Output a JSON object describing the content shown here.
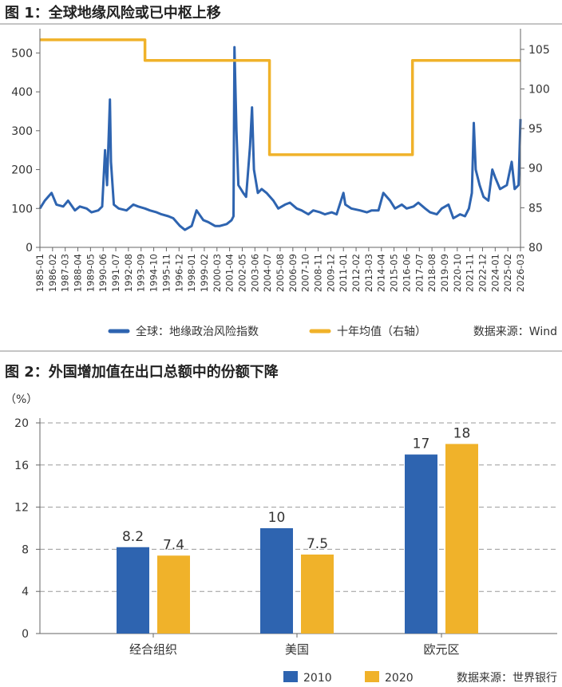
{
  "chart_data": [
    {
      "type": "line",
      "title": "图 1：全球地缘风险或已中枢上移",
      "source": "数据来源：Wind",
      "left_axis": {
        "ylim": [
          0,
          550
        ],
        "ticks": [
          0,
          100,
          200,
          300,
          400,
          500
        ]
      },
      "right_axis": {
        "ylim": [
          80,
          107
        ],
        "ticks": [
          80,
          85,
          90,
          95,
          100,
          105
        ]
      },
      "x_ticks": [
        "1985-01",
        "1986-02",
        "1987-03",
        "1988-04",
        "1989-05",
        "1990-06",
        "1991-07",
        "1992-08",
        "1993-09",
        "1994-10",
        "1995-11",
        "1996-12",
        "1998-01",
        "1999-02",
        "2000-03",
        "2001-04",
        "2002-05",
        "2003-06",
        "2004-07",
        "2005-08",
        "2006-09",
        "2007-10",
        "2008-11",
        "2009-12",
        "2011-01",
        "2012-02",
        "2013-03",
        "2014-04",
        "2015-05",
        "2016-06",
        "2017-07",
        "2018-08",
        "2019-09",
        "2020-10",
        "2021-11",
        "2022-12",
        "2024-01",
        "2025-02",
        "2026-03"
      ],
      "series": [
        {
          "name": "全球：地缘政治风险指数",
          "axis": "left",
          "color": "#2E64B0",
          "points": [
            [
              "1985-01",
              100
            ],
            [
              "1985-06",
              120
            ],
            [
              "1986-01",
              140
            ],
            [
              "1986-06",
              110
            ],
            [
              "1987-01",
              105
            ],
            [
              "1987-06",
              120
            ],
            [
              "1988-01",
              95
            ],
            [
              "1988-06",
              105
            ],
            [
              "1989-01",
              100
            ],
            [
              "1989-06",
              90
            ],
            [
              "1990-01",
              95
            ],
            [
              "1990-05",
              105
            ],
            [
              "1990-08",
              250
            ],
            [
              "1990-10",
              160
            ],
            [
              "1991-01",
              380
            ],
            [
              "1991-02",
              220
            ],
            [
              "1991-05",
              110
            ],
            [
              "1991-10",
              100
            ],
            [
              "1992-06",
              95
            ],
            [
              "1993-01",
              110
            ],
            [
              "1993-06",
              105
            ],
            [
              "1994-01",
              100
            ],
            [
              "1994-06",
              95
            ],
            [
              "1995-01",
              90
            ],
            [
              "1995-06",
              85
            ],
            [
              "1996-01",
              80
            ],
            [
              "1996-06",
              75
            ],
            [
              "1997-01",
              55
            ],
            [
              "1997-06",
              45
            ],
            [
              "1998-01",
              55
            ],
            [
              "1998-06",
              95
            ],
            [
              "1999-01",
              70
            ],
            [
              "1999-06",
              65
            ],
            [
              "2000-01",
              55
            ],
            [
              "2000-06",
              55
            ],
            [
              "2001-01",
              60
            ],
            [
              "2001-06",
              70
            ],
            [
              "2001-08",
              80
            ],
            [
              "2001-09",
              515
            ],
            [
              "2001-11",
              300
            ],
            [
              "2002-01",
              160
            ],
            [
              "2002-06",
              140
            ],
            [
              "2002-09",
              130
            ],
            [
              "2003-01",
              260
            ],
            [
              "2003-03",
              360
            ],
            [
              "2003-05",
              200
            ],
            [
              "2003-09",
              140
            ],
            [
              "2004-01",
              150
            ],
            [
              "2004-06",
              140
            ],
            [
              "2005-01",
              120
            ],
            [
              "2005-06",
              100
            ],
            [
              "2006-01",
              110
            ],
            [
              "2006-06",
              115
            ],
            [
              "2007-01",
              100
            ],
            [
              "2007-06",
              95
            ],
            [
              "2008-01",
              85
            ],
            [
              "2008-06",
              95
            ],
            [
              "2009-01",
              90
            ],
            [
              "2009-06",
              85
            ],
            [
              "2010-01",
              90
            ],
            [
              "2010-06",
              85
            ],
            [
              "2011-01",
              140
            ],
            [
              "2011-03",
              110
            ],
            [
              "2011-09",
              100
            ],
            [
              "2012-06",
              95
            ],
            [
              "2013-01",
              90
            ],
            [
              "2013-06",
              95
            ],
            [
              "2014-01",
              95
            ],
            [
              "2014-06",
              140
            ],
            [
              "2015-01",
              120
            ],
            [
              "2015-06",
              100
            ],
            [
              "2016-01",
              110
            ],
            [
              "2016-06",
              100
            ],
            [
              "2017-01",
              105
            ],
            [
              "2017-06",
              115
            ],
            [
              "2018-01",
              100
            ],
            [
              "2018-06",
              90
            ],
            [
              "2019-01",
              85
            ],
            [
              "2019-06",
              100
            ],
            [
              "2020-01",
              110
            ],
            [
              "2020-06",
              75
            ],
            [
              "2021-01",
              85
            ],
            [
              "2021-06",
              80
            ],
            [
              "2021-10",
              100
            ],
            [
              "2022-01",
              140
            ],
            [
              "2022-03",
              320
            ],
            [
              "2022-05",
              200
            ],
            [
              "2022-09",
              160
            ],
            [
              "2023-01",
              130
            ],
            [
              "2023-06",
              120
            ],
            [
              "2023-10",
              200
            ],
            [
              "2024-01",
              180
            ],
            [
              "2024-06",
              150
            ],
            [
              "2025-01",
              160
            ],
            [
              "2025-06",
              220
            ],
            [
              "2025-09",
              150
            ],
            [
              "2026-01",
              160
            ],
            [
              "2026-03",
              330
            ]
          ]
        },
        {
          "name": "十年均值（右轴）",
          "axis": "right",
          "color": "#F0B22A",
          "points": [
            [
              "1985-01",
              106.2
            ],
            [
              "1994-01",
              106.2
            ],
            [
              "1994-01",
              103.6
            ],
            [
              "2004-09",
              103.6
            ],
            [
              "2004-09",
              91.7
            ],
            [
              "2016-12",
              91.7
            ],
            [
              "2016-12",
              103.6
            ],
            [
              "2026-03",
              103.6
            ]
          ]
        }
      ]
    },
    {
      "type": "bar",
      "title": "图 2：外国增加值在出口总额中的份额下降",
      "ylabel": "（%）",
      "ylim": [
        0,
        20
      ],
      "yticks": [
        0,
        4,
        8,
        12,
        16,
        20
      ],
      "categories": [
        "经合组织",
        "美国",
        "欧元区"
      ],
      "series": [
        {
          "name": "2010",
          "color": "#2E64B0",
          "values": [
            8.2,
            10,
            17
          ]
        },
        {
          "name": "2020",
          "color": "#F0B22A",
          "values": [
            7.4,
            7.5,
            18
          ]
        }
      ],
      "data_labels": [
        [
          "8.2",
          "10",
          "17"
        ],
        [
          "7.4",
          "7.5",
          "18"
        ]
      ],
      "source": "数据来源：世界银行"
    }
  ]
}
